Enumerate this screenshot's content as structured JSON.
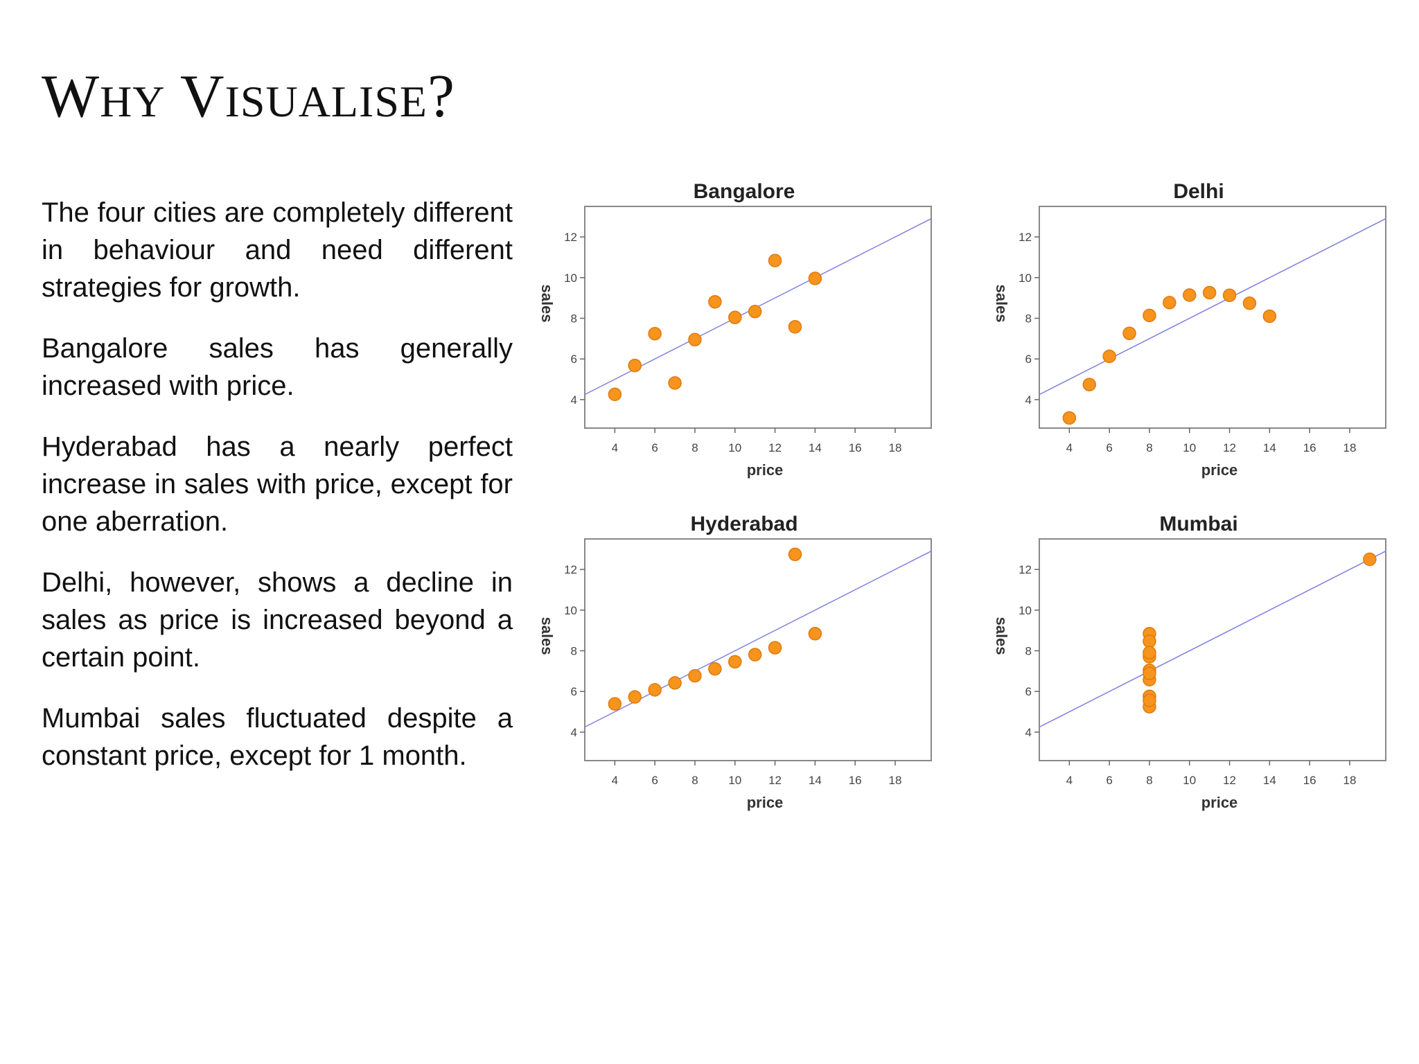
{
  "slide": {
    "title_w": "W",
    "title_hy": "HY",
    "title_v": "V",
    "title_isualise": "ISUALISE",
    "title_q": "?",
    "paragraphs": [
      "The four cities are completely different in behaviour and need different strategies for growth.",
      "Bangalore sales has generally increased with price.",
      "Hyderabad has a nearly perfect increase in sales with price, except for one aberration.",
      "Delhi, however, shows a decline in sales as price is increased beyond a certain point.",
      "Mumbai sales fluctuated despite a constant price, except for 1 month."
    ]
  },
  "colors": {
    "point_fill": "#f7941d",
    "point_stroke": "#e07a10",
    "line": "#8080e0",
    "frame": "#888888"
  },
  "chart_data": [
    {
      "type": "scatter",
      "title": "Bangalore",
      "xlabel": "price",
      "ylabel": "sales",
      "xticks": [
        4,
        6,
        8,
        10,
        12,
        14,
        16,
        18
      ],
      "yticks": [
        4,
        6,
        8,
        10,
        12
      ],
      "xlim": [
        2.5,
        19.8
      ],
      "ylim": [
        2.6,
        13.5
      ],
      "fit_line": {
        "intercept": 3.0,
        "slope": 0.5
      },
      "points": [
        {
          "x": 4,
          "y": 4.26
        },
        {
          "x": 5,
          "y": 5.68
        },
        {
          "x": 6,
          "y": 7.24
        },
        {
          "x": 7,
          "y": 4.82
        },
        {
          "x": 8,
          "y": 6.95
        },
        {
          "x": 9,
          "y": 8.81
        },
        {
          "x": 10,
          "y": 8.04
        },
        {
          "x": 11,
          "y": 8.33
        },
        {
          "x": 12,
          "y": 10.84
        },
        {
          "x": 13,
          "y": 7.58
        },
        {
          "x": 14,
          "y": 9.96
        }
      ]
    },
    {
      "type": "scatter",
      "title": "Delhi",
      "xlabel": "price",
      "ylabel": "sales",
      "xticks": [
        4,
        6,
        8,
        10,
        12,
        14,
        16,
        18
      ],
      "yticks": [
        4,
        6,
        8,
        10,
        12
      ],
      "xlim": [
        2.5,
        19.8
      ],
      "ylim": [
        2.6,
        13.5
      ],
      "fit_line": {
        "intercept": 3.0,
        "slope": 0.5
      },
      "points": [
        {
          "x": 4,
          "y": 3.1
        },
        {
          "x": 5,
          "y": 4.74
        },
        {
          "x": 6,
          "y": 6.13
        },
        {
          "x": 7,
          "y": 7.26
        },
        {
          "x": 8,
          "y": 8.14
        },
        {
          "x": 9,
          "y": 8.77
        },
        {
          "x": 10,
          "y": 9.14
        },
        {
          "x": 11,
          "y": 9.26
        },
        {
          "x": 12,
          "y": 9.13
        },
        {
          "x": 13,
          "y": 8.74
        },
        {
          "x": 14,
          "y": 8.1
        }
      ]
    },
    {
      "type": "scatter",
      "title": "Hyderabad",
      "xlabel": "price",
      "ylabel": "sales",
      "xticks": [
        4,
        6,
        8,
        10,
        12,
        14,
        16,
        18
      ],
      "yticks": [
        4,
        6,
        8,
        10,
        12
      ],
      "xlim": [
        2.5,
        19.8
      ],
      "ylim": [
        2.6,
        13.5
      ],
      "fit_line": {
        "intercept": 3.0,
        "slope": 0.5
      },
      "points": [
        {
          "x": 4,
          "y": 5.39
        },
        {
          "x": 5,
          "y": 5.73
        },
        {
          "x": 6,
          "y": 6.08
        },
        {
          "x": 7,
          "y": 6.42
        },
        {
          "x": 8,
          "y": 6.77
        },
        {
          "x": 9,
          "y": 7.11
        },
        {
          "x": 10,
          "y": 7.46
        },
        {
          "x": 11,
          "y": 7.81
        },
        {
          "x": 12,
          "y": 8.15
        },
        {
          "x": 13,
          "y": 12.74
        },
        {
          "x": 14,
          "y": 8.84
        }
      ]
    },
    {
      "type": "scatter",
      "title": "Mumbai",
      "xlabel": "price",
      "ylabel": "sales",
      "xticks": [
        4,
        6,
        8,
        10,
        12,
        14,
        16,
        18
      ],
      "yticks": [
        4,
        6,
        8,
        10,
        12
      ],
      "xlim": [
        2.5,
        19.8
      ],
      "ylim": [
        2.6,
        13.5
      ],
      "fit_line": {
        "intercept": 3.0,
        "slope": 0.5
      },
      "points": [
        {
          "x": 8,
          "y": 6.58
        },
        {
          "x": 8,
          "y": 5.76
        },
        {
          "x": 8,
          "y": 7.71
        },
        {
          "x": 8,
          "y": 8.84
        },
        {
          "x": 8,
          "y": 8.47
        },
        {
          "x": 8,
          "y": 7.04
        },
        {
          "x": 8,
          "y": 5.25
        },
        {
          "x": 19,
          "y": 12.5
        },
        {
          "x": 8,
          "y": 5.56
        },
        {
          "x": 8,
          "y": 7.91
        },
        {
          "x": 8,
          "y": 6.89
        }
      ]
    }
  ]
}
